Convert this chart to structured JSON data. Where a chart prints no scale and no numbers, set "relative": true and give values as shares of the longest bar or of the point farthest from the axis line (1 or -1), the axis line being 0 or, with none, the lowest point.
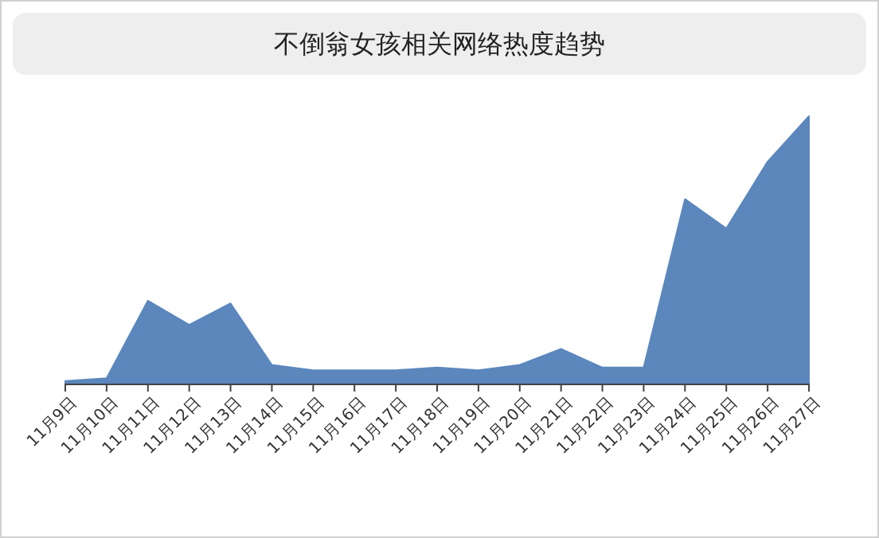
{
  "chart_data": {
    "type": "area",
    "title": "不倒翁女孩相关网络热度趋势",
    "relative": true,
    "categories": [
      "11月9日",
      "11月10日",
      "11月11日",
      "11月12日",
      "11月13日",
      "11月14日",
      "11月15日",
      "11月16日",
      "11月17日",
      "11月18日",
      "11月19日",
      "11月20日",
      "11月21日",
      "11月22日",
      "11月23日",
      "11月24日",
      "11月25日",
      "11月26日",
      "11月27日"
    ],
    "series": [
      {
        "color": "#5b87bd",
        "values": [
          0.01,
          0.02,
          0.31,
          0.22,
          0.3,
          0.07,
          0.05,
          0.05,
          0.05,
          0.06,
          0.05,
          0.07,
          0.13,
          0.06,
          0.06,
          0.69,
          0.58,
          0.83,
          1
        ]
      }
    ]
  }
}
